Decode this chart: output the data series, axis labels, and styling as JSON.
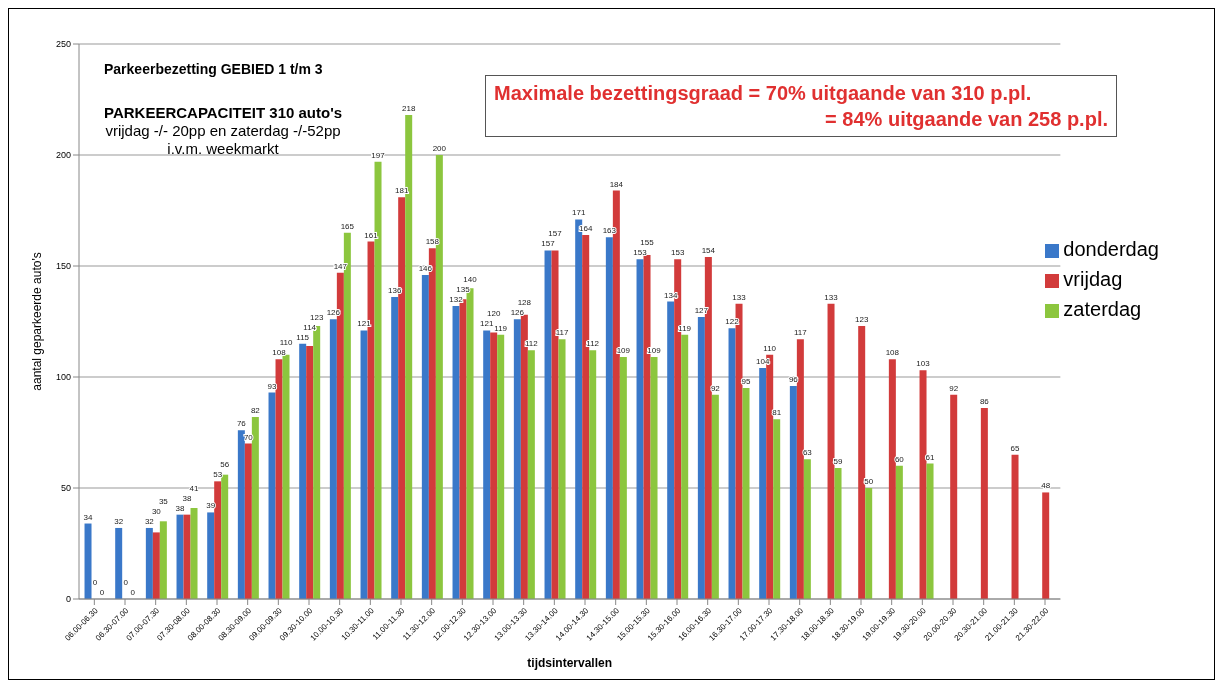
{
  "chart_data": {
    "type": "bar",
    "title": "Parkeerbezetting GEBIED 1 t/m 3",
    "xlabel": "tijdsintervallen",
    "ylabel": "aantal geparkeerde auto's",
    "categories": [
      "06.00-06.30",
      "06.30-07.00",
      "07.00-07.30",
      "07.30-08.00",
      "08.00-08.30",
      "08.30-09.00",
      "09.00-09.30",
      "09.30-10.00",
      "10.00-10.30",
      "10.30-11.00",
      "11.00-11.30",
      "11.30-12.00",
      "12.00-12.30",
      "12.30-13.00",
      "13.00-13.30",
      "13.30-14.00",
      "14.00-14.30",
      "14.30-15.00",
      "15.00-15.30",
      "15.30-16.00",
      "16.00-16.30",
      "16.30-17.00",
      "17.00-17.30",
      "17.30-18.00",
      "18.00-18.30",
      "18.30-19.00",
      "19.00-19.30",
      "19.30-20.00",
      "20.00-20.30",
      "20.30-21.00",
      "21.00-21.30",
      "21.30-22.00"
    ],
    "series": [
      {
        "name": "donderdag",
        "color": "#3a78c9",
        "values": [
          34,
          32,
          32,
          38,
          39,
          76,
          93,
          115,
          126,
          121,
          136,
          146,
          132,
          121,
          126,
          157,
          171,
          163,
          153,
          134,
          127,
          122,
          104,
          96,
          null,
          null,
          null,
          null,
          null,
          null,
          null,
          null
        ]
      },
      {
        "name": "vrijdag",
        "color": "#d23b3b",
        "values": [
          0,
          0,
          30,
          38,
          53,
          70,
          108,
          114,
          147,
          161,
          181,
          158,
          135,
          120,
          128,
          157,
          164,
          184,
          155,
          153,
          154,
          133,
          110,
          117,
          133,
          123,
          108,
          103,
          92,
          86,
          65,
          48
        ]
      },
      {
        "name": "zaterdag",
        "color": "#8cc63e",
        "values": [
          0,
          0,
          35,
          41,
          56,
          82,
          110,
          123,
          165,
          197,
          218,
          200,
          140,
          119,
          112,
          117,
          112,
          109,
          109,
          119,
          92,
          95,
          81,
          63,
          59,
          50,
          60,
          61,
          null,
          null,
          null,
          null
        ]
      }
    ],
    "ylim": [
      0,
      250
    ],
    "yticks": [
      0,
      50,
      100,
      150,
      200,
      250
    ],
    "grid": "y",
    "legend": "right",
    "data_labels": true,
    "annotations": [
      "PARKEERCAPACITEIT 310 auto's",
      "vrijdag -/- 20pp en zaterdag -/-52pp",
      "i.v.m. weekmarkt",
      "Maximale bezettingsgraad = 70% uitgaande van 310 p.pl.",
      "= 84% uitgaande van 258 p.pl."
    ]
  }
}
